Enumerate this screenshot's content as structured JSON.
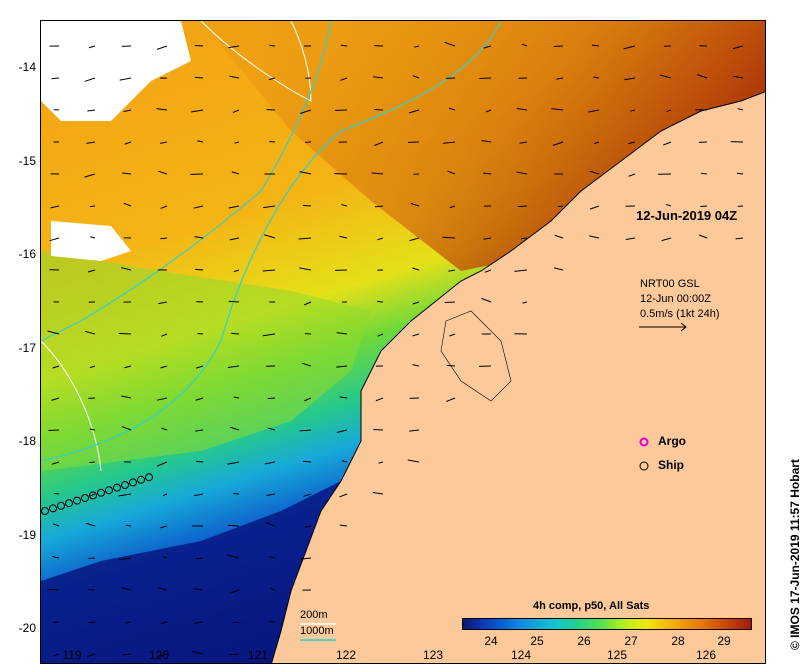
{
  "map": {
    "date_label": "12-Jun-2019 04Z",
    "y_ticks": [
      "-14",
      "-15",
      "-16",
      "-17",
      "-18",
      "-19",
      "-20"
    ],
    "x_ticks": [
      "119",
      "120",
      "121",
      "122",
      "123",
      "124",
      "125",
      "126"
    ],
    "vector_legend": {
      "line1": "NRT00 GSL",
      "line2": "12-Jun 00:00Z",
      "line3": "0.5m/s (1kt 24h)"
    },
    "legend": {
      "argo": "Argo",
      "ship": "Ship",
      "argo_color": "#e000e0"
    },
    "depth_contours": {
      "c200": "200m",
      "c1000": "1000m",
      "c200_color": "#ffffff",
      "c1000_color": "#30d0d0"
    },
    "colorbar": {
      "title": "4h comp, p50, All Sats",
      "labels": [
        "24",
        "25",
        "26",
        "27",
        "28",
        "29"
      ]
    },
    "credit": "© IMOS 17-Jun-2019 11:57 Hobart",
    "colors": {
      "land": "#fbc99a",
      "no_data": "#ffffff"
    }
  }
}
